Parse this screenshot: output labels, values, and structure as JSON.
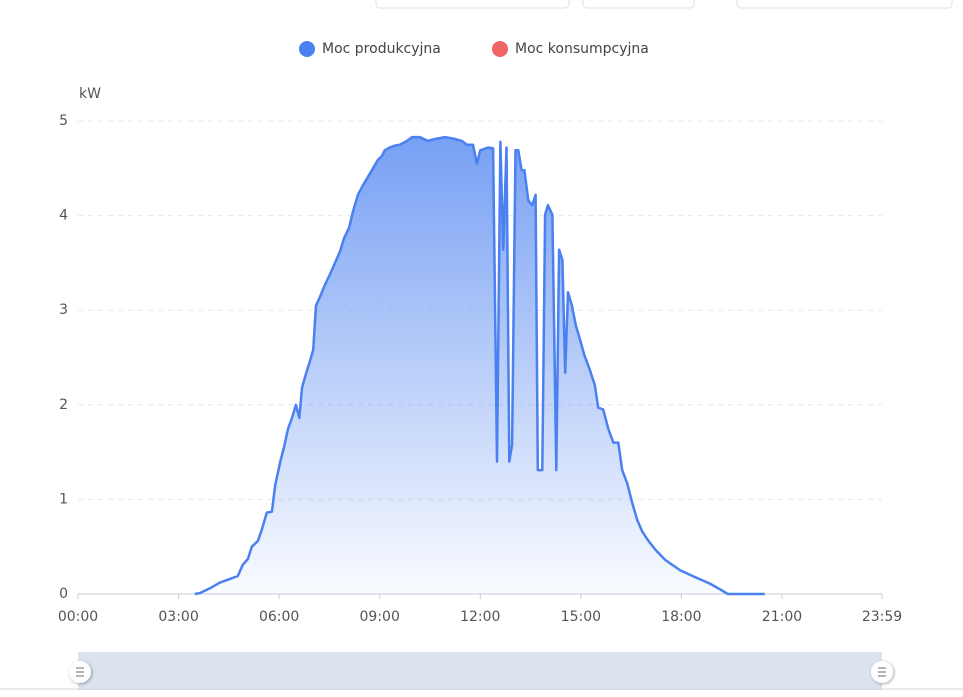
{
  "chart_data": {
    "type": "area",
    "y_label": "kW",
    "xlim": [
      0,
      1439
    ],
    "ylim": [
      0,
      5
    ],
    "xticks": [
      {
        "value": 0,
        "label": "00:00"
      },
      {
        "value": 180,
        "label": "03:00"
      },
      {
        "value": 360,
        "label": "06:00"
      },
      {
        "value": 540,
        "label": "09:00"
      },
      {
        "value": 720,
        "label": "12:00"
      },
      {
        "value": 900,
        "label": "15:00"
      },
      {
        "value": 1080,
        "label": "18:00"
      },
      {
        "value": 1260,
        "label": "21:00"
      },
      {
        "value": 1439,
        "label": "23:59"
      }
    ],
    "yticks": [
      0,
      1,
      2,
      3,
      4,
      5
    ],
    "grid": true,
    "legend": "top",
    "x": [
      209,
      218,
      236,
      254,
      272,
      286,
      295,
      304,
      311,
      322,
      329,
      338,
      347,
      353,
      362,
      369,
      376,
      383,
      390,
      396,
      401,
      408,
      415,
      421,
      426,
      433,
      442,
      451,
      460,
      469,
      476,
      485,
      492,
      501,
      510,
      519,
      528,
      537,
      544,
      549,
      558,
      567,
      576,
      589,
      598,
      612,
      626,
      639,
      657,
      675,
      687,
      696,
      707,
      714,
      720,
      734,
      743,
      750,
      756,
      761,
      767,
      772,
      777,
      783,
      788,
      794,
      799,
      806,
      813,
      819,
      823,
      831,
      836,
      841,
      849,
      856,
      861,
      867,
      872,
      877,
      884,
      891,
      899,
      906,
      916,
      925,
      931,
      940,
      949,
      958,
      967,
      974,
      983,
      992,
      1001,
      1010,
      1020,
      1033,
      1051,
      1078,
      1104,
      1131,
      1149,
      1163,
      1229
    ],
    "series": [
      {
        "name": "Moc produkcyjna",
        "color": "#4a80f0",
        "values": [
          0,
          0.01,
          0.06,
          0.12,
          0.16,
          0.19,
          0.31,
          0.37,
          0.5,
          0.56,
          0.68,
          0.86,
          0.87,
          1.15,
          1.4,
          1.56,
          1.75,
          1.86,
          2.0,
          1.86,
          2.18,
          2.33,
          2.46,
          2.58,
          3.05,
          3.14,
          3.27,
          3.38,
          3.5,
          3.62,
          3.76,
          3.87,
          4.04,
          4.22,
          4.32,
          4.41,
          4.5,
          4.59,
          4.63,
          4.69,
          4.72,
          4.74,
          4.75,
          4.79,
          4.83,
          4.83,
          4.79,
          4.81,
          4.83,
          4.81,
          4.79,
          4.75,
          4.75,
          4.55,
          4.69,
          4.72,
          4.71,
          1.4,
          4.78,
          3.64,
          4.72,
          1.4,
          1.58,
          4.69,
          4.69,
          4.48,
          4.48,
          4.16,
          4.11,
          4.22,
          1.31,
          1.31,
          4.01,
          4.11,
          4.01,
          1.31,
          3.64,
          3.53,
          2.34,
          3.19,
          3.05,
          2.84,
          2.68,
          2.53,
          2.37,
          2.21,
          1.97,
          1.95,
          1.75,
          1.6,
          1.6,
          1.31,
          1.17,
          0.96,
          0.78,
          0.66,
          0.57,
          0.47,
          0.36,
          0.25,
          0.18,
          0.11,
          0.05,
          0,
          0
        ]
      },
      {
        "name": "Moc konsumpcyjna",
        "color": "#ef6464",
        "values": [
          null,
          null,
          null,
          null,
          null,
          null,
          null,
          null,
          null,
          null,
          null,
          null,
          null,
          null,
          null,
          null,
          null,
          null,
          null,
          null,
          null,
          null,
          null,
          null,
          null,
          null,
          null,
          null,
          null,
          null,
          null,
          null,
          null,
          null,
          null,
          null,
          null,
          null,
          null,
          null,
          null,
          null,
          null,
          null,
          null,
          null,
          null,
          null,
          null,
          null,
          null,
          null,
          null,
          null,
          null,
          null,
          null,
          null,
          null,
          null,
          null,
          null,
          null,
          null,
          null,
          null,
          null,
          null,
          null,
          null,
          null,
          null,
          null,
          null,
          null,
          null,
          null,
          null,
          null,
          null,
          null,
          null,
          null,
          null,
          null,
          null,
          null,
          null,
          null,
          null,
          null,
          null,
          null,
          null,
          null,
          null,
          null,
          null,
          null,
          null,
          null,
          null,
          null,
          null,
          null
        ]
      }
    ]
  }
}
